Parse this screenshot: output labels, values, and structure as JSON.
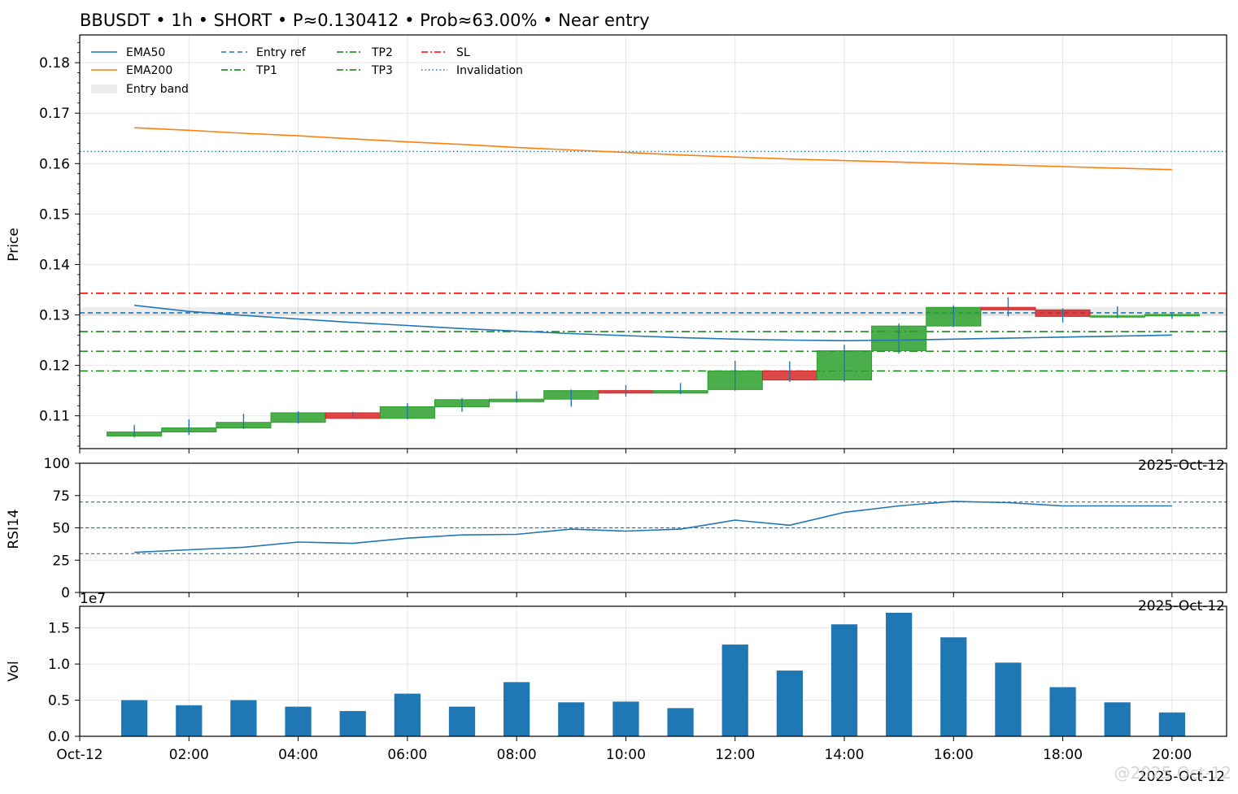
{
  "title": "BBUSDT • 1h • SHORT • P≈0.130412 • Prob≈63.00% • Near entry",
  "watermark": "@2025 Oct-12",
  "chart_data": [
    {
      "type": "candlestick",
      "panel": "price",
      "ylabel": "Price",
      "ylim": [
        0.1035,
        0.1855
      ],
      "yticks": [
        "0.11",
        "0.12",
        "0.13",
        "0.14",
        "0.15",
        "0.16",
        "0.17",
        "0.18"
      ],
      "ytick_values": [
        0.11,
        0.12,
        0.13,
        0.14,
        0.15,
        0.16,
        0.17,
        0.18
      ],
      "corner_date_label": "2025-Oct-12",
      "x_hours": [
        1,
        2,
        3,
        4,
        5,
        6,
        7,
        8,
        9,
        10,
        11,
        12,
        13,
        14,
        15,
        16,
        17,
        18,
        19,
        20
      ],
      "candles": [
        {
          "o": 0.106,
          "h": 0.1082,
          "l": 0.1057,
          "c": 0.1068
        },
        {
          "o": 0.1068,
          "h": 0.1093,
          "l": 0.1062,
          "c": 0.1076
        },
        {
          "o": 0.1076,
          "h": 0.1104,
          "l": 0.1074,
          "c": 0.1087
        },
        {
          "o": 0.1087,
          "h": 0.1109,
          "l": 0.1085,
          "c": 0.1106
        },
        {
          "o": 0.1106,
          "h": 0.1108,
          "l": 0.1097,
          "c": 0.1095
        },
        {
          "o": 0.1095,
          "h": 0.1125,
          "l": 0.1093,
          "c": 0.1118
        },
        {
          "o": 0.1118,
          "h": 0.1135,
          "l": 0.1108,
          "c": 0.1132
        },
        {
          "o": 0.1128,
          "h": 0.1149,
          "l": 0.1126,
          "c": 0.1133
        },
        {
          "o": 0.1133,
          "h": 0.1152,
          "l": 0.1118,
          "c": 0.115
        },
        {
          "o": 0.115,
          "h": 0.1161,
          "l": 0.1138,
          "c": 0.1145
        },
        {
          "o": 0.1145,
          "h": 0.1165,
          "l": 0.1143,
          "c": 0.115
        },
        {
          "o": 0.1152,
          "h": 0.1209,
          "l": 0.115,
          "c": 0.1189
        },
        {
          "o": 0.1189,
          "h": 0.1208,
          "l": 0.1167,
          "c": 0.1171
        },
        {
          "o": 0.1171,
          "h": 0.1241,
          "l": 0.1167,
          "c": 0.1229
        },
        {
          "o": 0.1229,
          "h": 0.1283,
          "l": 0.1223,
          "c": 0.1278
        },
        {
          "o": 0.1278,
          "h": 0.1319,
          "l": 0.1276,
          "c": 0.1315
        },
        {
          "o": 0.1315,
          "h": 0.1335,
          "l": 0.1297,
          "c": 0.131
        },
        {
          "o": 0.131,
          "h": 0.1313,
          "l": 0.1285,
          "c": 0.1297
        },
        {
          "o": 0.1297,
          "h": 0.1317,
          "l": 0.1294,
          "c": 0.1298
        },
        {
          "o": 0.1298,
          "h": 0.1305,
          "l": 0.1292,
          "c": 0.1301
        }
      ],
      "ema50": [
        0.1319,
        0.1307,
        0.1299,
        0.1292,
        0.1285,
        0.1279,
        0.1273,
        0.1268,
        0.1263,
        0.1259,
        0.1255,
        0.1252,
        0.125,
        0.1249,
        0.125,
        0.1252,
        0.1254,
        0.1256,
        0.1258,
        0.126
      ],
      "ema200": [
        0.1671,
        0.1666,
        0.166,
        0.1655,
        0.1649,
        0.1643,
        0.1638,
        0.1632,
        0.1627,
        0.1622,
        0.1617,
        0.1613,
        0.1609,
        0.1606,
        0.1603,
        0.16,
        0.1597,
        0.1594,
        0.1591,
        0.1588
      ],
      "levels": {
        "entry_ref": 0.130412,
        "entry_band": [
          0.1298,
          0.1315
        ],
        "tp1": 0.1267,
        "tp2": 0.1228,
        "tp3": 0.1189,
        "sl": 0.1343,
        "invalidation": 0.1624
      },
      "legend_position": "upper-left",
      "legend": [
        {
          "label": "EMA50",
          "color": "#1f77b4",
          "style": "solid"
        },
        {
          "label": "EMA200",
          "color": "#ff7f0e",
          "style": "solid"
        },
        {
          "label": "Entry band",
          "color": "#d9d9d9",
          "style": "band"
        },
        {
          "label": "Entry ref",
          "color": "#1f77b4",
          "style": "dashed"
        },
        {
          "label": "TP1",
          "color": "#008000",
          "style": "dashdot"
        },
        {
          "label": "TP2",
          "color": "#008000",
          "style": "dashdot"
        },
        {
          "label": "TP3",
          "color": "#008000",
          "style": "dashdot"
        },
        {
          "label": "SL",
          "color": "#ff0000",
          "style": "dashdot"
        },
        {
          "label": "Invalidation",
          "color": "#1f77b4",
          "style": "dotted"
        }
      ],
      "colors": {
        "up": "#2ca02c",
        "down": "#d62728",
        "wick": "#1f77b4"
      },
      "grid": true
    },
    {
      "type": "line",
      "panel": "rsi",
      "ylabel": "RSI14",
      "ylim": [
        0,
        100
      ],
      "yticks": [
        "0",
        "25",
        "50",
        "75",
        "100"
      ],
      "ytick_values": [
        0,
        25,
        50,
        75,
        100
      ],
      "corner_date_label": "2025-Oct-12",
      "x_hours": [
        1,
        2,
        3,
        4,
        5,
        6,
        7,
        8,
        9,
        10,
        11,
        12,
        13,
        14,
        15,
        16,
        17,
        18,
        19,
        20
      ],
      "values": [
        31,
        33,
        35,
        39,
        38,
        42,
        44.5,
        45,
        49,
        47.5,
        49,
        56,
        52,
        62,
        67,
        70.5,
        69.5,
        67,
        67,
        67
      ],
      "reference_lines": [
        30,
        50,
        70
      ],
      "color": "#1f77b4",
      "grid": true
    },
    {
      "type": "bar",
      "panel": "volume",
      "ylabel": "Vol",
      "scale_label": "1e7",
      "ylim": [
        0,
        1.8
      ],
      "yticks": [
        "0.0",
        "0.5",
        "1.0",
        "1.5"
      ],
      "ytick_values": [
        0,
        0.5,
        1.0,
        1.5
      ],
      "x_hours": [
        1,
        2,
        3,
        4,
        5,
        6,
        7,
        8,
        9,
        10,
        11,
        12,
        13,
        14,
        15,
        16,
        17,
        18,
        19,
        20
      ],
      "values": [
        0.5,
        0.43,
        0.5,
        0.41,
        0.35,
        0.59,
        0.41,
        0.75,
        0.47,
        0.48,
        0.39,
        1.27,
        0.91,
        1.55,
        1.71,
        1.37,
        1.02,
        0.68,
        0.47,
        0.33
      ],
      "color": "#1f77b4",
      "xticks": [
        "Oct-12",
        "02:00",
        "04:00",
        "06:00",
        "08:00",
        "10:00",
        "12:00",
        "14:00",
        "16:00",
        "18:00",
        "20:00"
      ],
      "xtick_hours": [
        0,
        2,
        4,
        6,
        8,
        10,
        12,
        14,
        16,
        18,
        20
      ],
      "corner_date_label": "2025-Oct-12",
      "grid": true
    }
  ]
}
